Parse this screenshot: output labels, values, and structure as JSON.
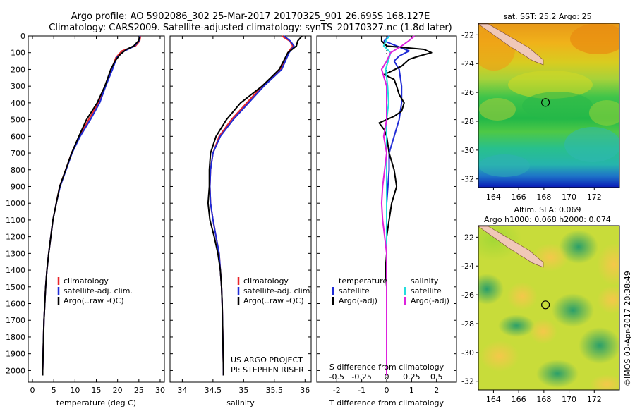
{
  "header": {
    "line1": "Argo profile: AO 5902086_302 25-Mar-2017 20170325_901 26.695S 168.127E",
    "line2": "Climatology: CARS2009. Satellite-adjusted climatology: synTS_20170327.nc (1.8d later)"
  },
  "colors": {
    "climatology": "#e8252a",
    "satellite": "#1f2bd6",
    "argo": "#000000",
    "sal_satellite": "#22dddd",
    "sal_argo": "#dd22dd"
  },
  "chart_data": [
    {
      "type": "line",
      "name": "temperature-profile",
      "xlabel": "temperature (deg C)",
      "ylabel": "",
      "xlim": [
        -1,
        31
      ],
      "ylim": [
        2070,
        0
      ],
      "xticks": [
        0,
        5,
        10,
        15,
        20,
        25,
        30
      ],
      "yticks": [
        0,
        100,
        200,
        300,
        400,
        500,
        600,
        700,
        800,
        900,
        1000,
        1100,
        1200,
        1300,
        1400,
        1500,
        1600,
        1700,
        1800,
        1900,
        2000
      ],
      "legend": [
        "climatology",
        "satellite-adj. clim.",
        "Argo(..raw -QC)"
      ],
      "series": [
        {
          "name": "climatology",
          "color": "#e8252a",
          "points": [
            [
              25.4,
              0
            ],
            [
              25.2,
              30
            ],
            [
              24.2,
              60
            ],
            [
              21,
              90
            ],
            [
              19.6,
              130
            ],
            [
              18.6,
              200
            ],
            [
              17,
              300
            ],
            [
              15.5,
              400
            ],
            [
              13.2,
              500
            ],
            [
              11,
              600
            ],
            [
              9.2,
              700
            ],
            [
              7.8,
              800
            ],
            [
              6.4,
              900
            ],
            [
              5.6,
              1000
            ],
            [
              4.8,
              1100
            ],
            [
              4.3,
              1200
            ],
            [
              3.8,
              1300
            ],
            [
              3.4,
              1400
            ],
            [
              3.1,
              1500
            ],
            [
              2.9,
              1600
            ],
            [
              2.7,
              1700
            ],
            [
              2.6,
              1800
            ],
            [
              2.5,
              1900
            ],
            [
              2.4,
              2000
            ],
            [
              2.4,
              2030
            ]
          ]
        },
        {
          "name": "satellite",
          "color": "#1f2bd6",
          "points": [
            [
              25.3,
              0
            ],
            [
              25,
              30
            ],
            [
              24,
              60
            ],
            [
              21.6,
              90
            ],
            [
              19.8,
              130
            ],
            [
              18.8,
              200
            ],
            [
              17.2,
              300
            ],
            [
              15.8,
              400
            ],
            [
              13.6,
              500
            ],
            [
              11.2,
              600
            ],
            [
              9.3,
              700
            ],
            [
              7.9,
              800
            ],
            [
              6.5,
              900
            ],
            [
              5.6,
              1000
            ],
            [
              4.8,
              1100
            ],
            [
              4.3,
              1200
            ],
            [
              3.8,
              1300
            ],
            [
              3.4,
              1400
            ],
            [
              3.1,
              1500
            ],
            [
              2.9,
              1600
            ],
            [
              2.7,
              1700
            ],
            [
              2.6,
              1800
            ],
            [
              2.5,
              1900
            ],
            [
              2.4,
              2000
            ],
            [
              2.4,
              2030
            ]
          ]
        },
        {
          "name": "Argo",
          "color": "#000000",
          "points": [
            [
              25.2,
              5
            ],
            [
              24.9,
              30
            ],
            [
              23.8,
              60
            ],
            [
              22.1,
              80
            ],
            [
              20.6,
              110
            ],
            [
              19.4,
              150
            ],
            [
              18.4,
              200
            ],
            [
              17,
              300
            ],
            [
              15.2,
              400
            ],
            [
              12.7,
              500
            ],
            [
              10.9,
              600
            ],
            [
              9.2,
              700
            ],
            [
              7.8,
              800
            ],
            [
              6.4,
              900
            ],
            [
              5.6,
              1000
            ],
            [
              4.8,
              1100
            ],
            [
              4.3,
              1200
            ],
            [
              3.8,
              1300
            ],
            [
              3.4,
              1400
            ],
            [
              3.1,
              1500
            ],
            [
              2.9,
              1600
            ],
            [
              2.7,
              1700
            ],
            [
              2.6,
              1800
            ],
            [
              2.5,
              1900
            ],
            [
              2.4,
              2000
            ],
            [
              2.4,
              2030
            ]
          ]
        }
      ]
    },
    {
      "type": "line",
      "name": "salinity-profile",
      "xlabel": "salinity",
      "xlim": [
        33.8,
        36.1
      ],
      "ylim": [
        2070,
        0
      ],
      "xticks": [
        34,
        34.5,
        35,
        35.5,
        36
      ],
      "legend": [
        "climatology",
        "satellite-adj. clim.",
        "Argo(..raw -QC)"
      ],
      "footer": [
        "US ARGO PROJECT",
        "PI: STEPHEN RISER"
      ],
      "series": [
        {
          "name": "climatology",
          "color": "#e8252a",
          "points": [
            [
              35.62,
              0
            ],
            [
              35.75,
              30
            ],
            [
              35.8,
              60
            ],
            [
              35.72,
              100
            ],
            [
              35.6,
              200
            ],
            [
              35.3,
              300
            ],
            [
              35.05,
              400
            ],
            [
              34.8,
              500
            ],
            [
              34.6,
              600
            ],
            [
              34.5,
              700
            ],
            [
              34.46,
              800
            ],
            [
              34.45,
              900
            ],
            [
              34.46,
              1000
            ],
            [
              34.5,
              1100
            ],
            [
              34.55,
              1200
            ],
            [
              34.6,
              1300
            ],
            [
              34.62,
              1400
            ],
            [
              34.64,
              1500
            ],
            [
              34.65,
              1600
            ],
            [
              34.66,
              1800
            ],
            [
              34.67,
              2000
            ],
            [
              34.67,
              2030
            ]
          ]
        },
        {
          "name": "satellite",
          "color": "#1f2bd6",
          "points": [
            [
              35.66,
              0
            ],
            [
              35.76,
              30
            ],
            [
              35.82,
              60
            ],
            [
              35.74,
              100
            ],
            [
              35.62,
              200
            ],
            [
              35.33,
              300
            ],
            [
              35.08,
              400
            ],
            [
              34.83,
              500
            ],
            [
              34.62,
              600
            ],
            [
              34.5,
              700
            ],
            [
              34.46,
              800
            ],
            [
              34.45,
              900
            ],
            [
              34.46,
              1000
            ],
            [
              34.5,
              1100
            ],
            [
              34.55,
              1200
            ],
            [
              34.6,
              1300
            ],
            [
              34.62,
              1400
            ],
            [
              34.64,
              1500
            ],
            [
              34.65,
              1600
            ],
            [
              34.66,
              1800
            ],
            [
              34.67,
              2000
            ],
            [
              34.67,
              2030
            ]
          ]
        },
        {
          "name": "Argo",
          "color": "#000000",
          "points": [
            [
              35.95,
              0
            ],
            [
              35.88,
              30
            ],
            [
              35.86,
              60
            ],
            [
              35.72,
              100
            ],
            [
              35.58,
              200
            ],
            [
              35.3,
              300
            ],
            [
              34.95,
              400
            ],
            [
              34.72,
              500
            ],
            [
              34.55,
              600
            ],
            [
              34.46,
              700
            ],
            [
              34.44,
              800
            ],
            [
              34.44,
              900
            ],
            [
              34.42,
              1000
            ],
            [
              34.45,
              1100
            ],
            [
              34.52,
              1200
            ],
            [
              34.58,
              1300
            ],
            [
              34.62,
              1400
            ],
            [
              34.64,
              1500
            ],
            [
              34.65,
              1600
            ],
            [
              34.66,
              1800
            ],
            [
              34.67,
              2000
            ],
            [
              34.67,
              2030
            ]
          ]
        }
      ]
    },
    {
      "type": "line",
      "name": "difference-profile",
      "xlabel": "T difference from climatology",
      "xlabel_top": "S difference from climatology",
      "xlim": [
        -2.8,
        2.8
      ],
      "ylim": [
        2070,
        0
      ],
      "xticks": [
        -2,
        -1,
        0,
        1,
        2
      ],
      "xticks_top": [
        "-0.5",
        "-0.25",
        "0",
        "0.25",
        "0.5"
      ],
      "legend_temperature": {
        "title": "temperature",
        "items": [
          "satellite",
          "Argo(-adj)"
        ]
      },
      "legend_salinity": {
        "title": "salinity",
        "items": [
          "satellite",
          "Argo(-adj)"
        ]
      },
      "series": [
        {
          "name": "T satellite",
          "color": "#1f2bd6",
          "points": [
            [
              0.1,
              0
            ],
            [
              -0.1,
              30
            ],
            [
              0.4,
              60
            ],
            [
              0.9,
              90
            ],
            [
              0.5,
              120
            ],
            [
              0.3,
              150
            ],
            [
              0.5,
              200
            ],
            [
              0.6,
              300
            ],
            [
              0.6,
              400
            ],
            [
              0.5,
              500
            ],
            [
              0.3,
              600
            ],
            [
              0.1,
              700
            ],
            [
              0.1,
              800
            ],
            [
              0.05,
              900
            ],
            [
              0,
              1000
            ],
            [
              0,
              1200
            ],
            [
              0,
              1500
            ],
            [
              0,
              2030
            ]
          ]
        },
        {
          "name": "T Argo",
          "color": "#000000",
          "points": [
            [
              -0.2,
              0
            ],
            [
              -0.2,
              30
            ],
            [
              0,
              60
            ],
            [
              1.5,
              80
            ],
            [
              1.8,
              100
            ],
            [
              1.3,
              120
            ],
            [
              0.9,
              140
            ],
            [
              0.6,
              180
            ],
            [
              0.2,
              210
            ],
            [
              -0.1,
              230
            ],
            [
              0.3,
              260
            ],
            [
              0.4,
              300
            ],
            [
              0.5,
              350
            ],
            [
              0.7,
              400
            ],
            [
              0.6,
              450
            ],
            [
              0.3,
              480
            ],
            [
              -0.3,
              520
            ],
            [
              -0.1,
              560
            ],
            [
              0,
              600
            ],
            [
              0.1,
              700
            ],
            [
              0.3,
              800
            ],
            [
              0.4,
              900
            ],
            [
              0.2,
              1000
            ],
            [
              0.1,
              1100
            ],
            [
              0,
              1200
            ],
            [
              0,
              1300
            ],
            [
              -0.05,
              1400
            ],
            [
              0,
              1500
            ],
            [
              0,
              2030
            ]
          ]
        },
        {
          "name": "S satellite",
          "color": "#22dddd",
          "points": [
            [
              0.03,
              0
            ],
            [
              0,
              20
            ],
            [
              -0.03,
              60
            ],
            [
              0.04,
              100
            ],
            [
              -0.01,
              200
            ],
            [
              0.01,
              300
            ],
            [
              0.02,
              400
            ],
            [
              0,
              500
            ],
            [
              0,
              600
            ],
            [
              0,
              800
            ],
            [
              0,
              1000
            ],
            [
              0,
              1200
            ],
            [
              0,
              1500
            ],
            [
              0,
              2030
            ]
          ]
        },
        {
          "name": "S Argo",
          "color": "#dd22dd",
          "points": [
            [
              0.28,
              0
            ],
            [
              0.22,
              30
            ],
            [
              0.15,
              60
            ],
            [
              0.04,
              100
            ],
            [
              0,
              150
            ],
            [
              -0.05,
              200
            ],
            [
              0,
              300
            ],
            [
              0,
              500
            ],
            [
              -0.03,
              600
            ],
            [
              0,
              700
            ],
            [
              -0.04,
              900
            ],
            [
              -0.05,
              1000
            ],
            [
              -0.04,
              1100
            ],
            [
              -0.02,
              1200
            ],
            [
              0,
              1300
            ],
            [
              0,
              1500
            ],
            [
              0,
              2030
            ]
          ]
        }
      ]
    },
    {
      "type": "heatmap",
      "name": "sst-map",
      "title": "sat. SST: 25.2 Argo: 25",
      "xlim": [
        162.8,
        174
      ],
      "ylim": [
        -32.6,
        -21.2
      ],
      "xticks": [
        164,
        166,
        168,
        170,
        172
      ],
      "yticks": [
        -22,
        -24,
        -26,
        -28,
        -30,
        -32
      ],
      "marker": [
        168.127,
        -26.695
      ]
    },
    {
      "type": "heatmap",
      "name": "sla-map",
      "title": "Altim. SLA: 0.069",
      "subtitle": "Argo h1000: 0.068 h2000: 0.074",
      "xlim": [
        162.8,
        174
      ],
      "ylim": [
        -32.6,
        -21.2
      ],
      "xticks": [
        164,
        166,
        168,
        170,
        172
      ],
      "yticks": [
        -22,
        -24,
        -26,
        -28,
        -30,
        -32
      ],
      "marker": [
        168.127,
        -26.695
      ]
    }
  ],
  "credit": "©IMOS 03-Apr-2017 20:38:49"
}
